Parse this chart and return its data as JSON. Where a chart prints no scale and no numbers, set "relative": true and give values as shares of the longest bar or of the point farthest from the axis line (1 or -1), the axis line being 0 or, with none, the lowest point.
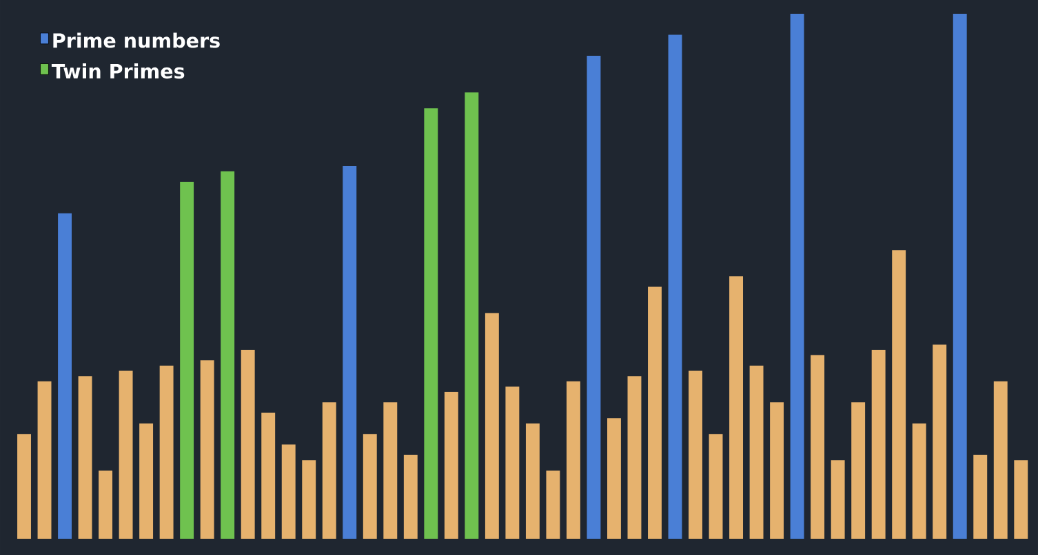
{
  "chart_data": {
    "type": "bar",
    "relative": true,
    "stacked": true,
    "legend": "top left",
    "categories": [
      null,
      null,
      null,
      null,
      null,
      null,
      null,
      null,
      null,
      null,
      null,
      null,
      null,
      null,
      null,
      null,
      null,
      null,
      null,
      null,
      null,
      null,
      null,
      null,
      null,
      null,
      null,
      null,
      null,
      null,
      null,
      null,
      null,
      null,
      null,
      null,
      null,
      null,
      null,
      null,
      null,
      null,
      null,
      null,
      null,
      null,
      null,
      null,
      null,
      null
    ],
    "series": [
      {
        "color": "#e6b26e",
        "values": [
          0.2,
          0.3,
          null,
          0.31,
          0.13,
          0.32,
          0.22,
          0.33,
          null,
          0.34,
          null,
          0.36,
          0.24,
          0.18,
          0.15,
          0.26,
          null,
          0.2,
          0.26,
          0.16,
          null,
          0.28,
          null,
          0.43,
          0.29,
          0.22,
          0.13,
          0.3,
          null,
          0.23,
          0.31,
          0.48,
          null,
          0.32,
          0.2,
          0.5,
          0.33,
          0.26,
          null,
          0.35,
          0.15,
          0.26,
          0.36,
          0.55,
          0.22,
          0.37,
          null,
          0.16,
          0.3,
          0.15
        ]
      },
      {
        "name": "Prime numbers",
        "color": "#4a7fd6",
        "values": [
          null,
          null,
          0.62,
          null,
          null,
          null,
          null,
          null,
          null,
          null,
          null,
          null,
          null,
          null,
          null,
          null,
          0.71,
          null,
          null,
          null,
          null,
          null,
          null,
          null,
          null,
          null,
          null,
          null,
          0.92,
          null,
          null,
          null,
          0.96,
          null,
          null,
          null,
          null,
          null,
          1,
          null,
          null,
          null,
          null,
          null,
          null,
          null,
          1,
          null,
          null,
          null
        ]
      },
      {
        "name": "Twin Primes",
        "color": "#6fc24f",
        "values": [
          null,
          null,
          null,
          null,
          null,
          null,
          null,
          null,
          0.68,
          null,
          0.7,
          null,
          null,
          null,
          null,
          null,
          null,
          null,
          null,
          null,
          0.82,
          null,
          0.85,
          null,
          null,
          null,
          null,
          null,
          null,
          null,
          null,
          null,
          null,
          null,
          null,
          null,
          null,
          null,
          null,
          null,
          null,
          null,
          null,
          null,
          null,
          null,
          null,
          null,
          null,
          null
        ]
      }
    ]
  }
}
